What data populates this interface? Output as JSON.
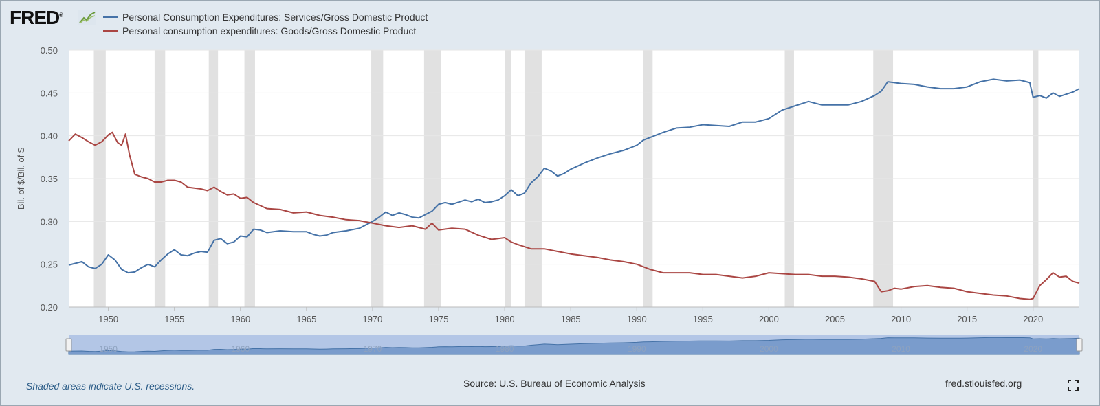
{
  "header": {
    "logo_text": "FRED",
    "logo_mark": "®"
  },
  "legend": [
    {
      "label": "Personal Consumption Expenditures: Services/Gross Domestic Product",
      "color": "#4572a7"
    },
    {
      "label": "Personal consumption expenditures: Goods/Gross Domestic Product",
      "color": "#aa4643"
    }
  ],
  "footer": {
    "note": "Shaded areas indicate U.S. recessions.",
    "source": "Source: U.S. Bureau of Economic Analysis",
    "site": "fred.stlouisfed.org"
  },
  "chart_data": {
    "type": "line",
    "ylabel": "Bil. of $/Bil. of $",
    "xlabel": "",
    "ylim": [
      0.2,
      0.5
    ],
    "yticks": [
      "0.20",
      "0.25",
      "0.30",
      "0.35",
      "0.40",
      "0.45",
      "0.50"
    ],
    "xlim": [
      1947,
      2023.5
    ],
    "xticks": [
      "1950",
      "1955",
      "1960",
      "1965",
      "1970",
      "1975",
      "1980",
      "1985",
      "1990",
      "1995",
      "2000",
      "2005",
      "2010",
      "2015",
      "2020"
    ],
    "navigator_ticks": [
      "1950",
      "1960",
      "1970",
      "1980",
      "1990",
      "2000",
      "2010",
      "2020"
    ],
    "recessions": [
      [
        1948.9,
        1949.8
      ],
      [
        1953.5,
        1954.3
      ],
      [
        1957.6,
        1958.3
      ],
      [
        1960.3,
        1961.1
      ],
      [
        1969.9,
        1970.8
      ],
      [
        1973.9,
        1975.2
      ],
      [
        1980.0,
        1980.5
      ],
      [
        1981.5,
        1982.8
      ],
      [
        1990.5,
        1991.2
      ],
      [
        2001.2,
        2001.9
      ],
      [
        2007.9,
        2009.4
      ],
      [
        2020.0,
        2020.4
      ]
    ],
    "series": [
      {
        "name": "Personal Consumption Expenditures: Services/Gross Domestic Product",
        "color": "#4572a7",
        "x": [
          1947,
          1948,
          1948.5,
          1949,
          1949.5,
          1950,
          1950.5,
          1951,
          1951.5,
          1952,
          1952.5,
          1953,
          1953.5,
          1954,
          1954.5,
          1955,
          1955.5,
          1956,
          1956.5,
          1957,
          1957.5,
          1958,
          1958.5,
          1959,
          1959.5,
          1960,
          1960.5,
          1961,
          1961.5,
          1962,
          1963,
          1964,
          1965,
          1965.5,
          1966,
          1966.5,
          1967,
          1968,
          1969,
          1970,
          1970.5,
          1971,
          1971.5,
          1972,
          1972.5,
          1973,
          1973.5,
          1974,
          1974.5,
          1975,
          1975.5,
          1976,
          1977,
          1977.5,
          1978,
          1978.5,
          1979,
          1979.5,
          1980,
          1980.5,
          1981,
          1981.5,
          1982,
          1982.5,
          1983,
          1983.5,
          1984,
          1984.5,
          1985,
          1986,
          1987,
          1988,
          1989,
          1990,
          1990.5,
          1991,
          1992,
          1993,
          1994,
          1995,
          1996,
          1997,
          1998,
          1999,
          2000,
          2001,
          2002,
          2003,
          2004,
          2005,
          2006,
          2007,
          2008,
          2008.5,
          2009,
          2009.5,
          2010,
          2011,
          2012,
          2013,
          2014,
          2015,
          2016,
          2017,
          2018,
          2019,
          2019.75,
          2020,
          2020.5,
          2021,
          2021.5,
          2022,
          2023,
          2023.5
        ],
        "values": [
          0.249,
          0.253,
          0.247,
          0.245,
          0.25,
          0.261,
          0.255,
          0.244,
          0.24,
          0.241,
          0.246,
          0.25,
          0.247,
          0.255,
          0.262,
          0.267,
          0.261,
          0.26,
          0.263,
          0.265,
          0.264,
          0.278,
          0.28,
          0.274,
          0.276,
          0.283,
          0.282,
          0.291,
          0.29,
          0.287,
          0.289,
          0.288,
          0.288,
          0.285,
          0.283,
          0.284,
          0.287,
          0.289,
          0.292,
          0.3,
          0.305,
          0.311,
          0.307,
          0.31,
          0.308,
          0.305,
          0.304,
          0.308,
          0.312,
          0.32,
          0.322,
          0.32,
          0.325,
          0.323,
          0.326,
          0.322,
          0.323,
          0.325,
          0.33,
          0.337,
          0.33,
          0.333,
          0.345,
          0.352,
          0.362,
          0.359,
          0.353,
          0.356,
          0.361,
          0.368,
          0.374,
          0.379,
          0.383,
          0.389,
          0.395,
          0.398,
          0.404,
          0.409,
          0.41,
          0.413,
          0.412,
          0.411,
          0.416,
          0.416,
          0.42,
          0.43,
          0.435,
          0.44,
          0.436,
          0.436,
          0.436,
          0.44,
          0.447,
          0.452,
          0.463,
          0.462,
          0.461,
          0.46,
          0.457,
          0.455,
          0.455,
          0.457,
          0.463,
          0.466,
          0.464,
          0.465,
          0.462,
          0.445,
          0.447,
          0.444,
          0.45,
          0.446,
          0.451,
          0.455
        ]
      },
      {
        "name": "Personal consumption expenditures: Goods/Gross Domestic Product",
        "color": "#aa4643",
        "x": [
          1947,
          1947.5,
          1948,
          1948.5,
          1949,
          1949.5,
          1950,
          1950.3,
          1950.7,
          1951,
          1951.3,
          1951.6,
          1952,
          1952.5,
          1953,
          1953.5,
          1954,
          1954.5,
          1955,
          1955.5,
          1956,
          1957,
          1957.5,
          1958,
          1958.5,
          1959,
          1959.5,
          1960,
          1960.5,
          1961,
          1962,
          1963,
          1964,
          1965,
          1966,
          1967,
          1968,
          1969,
          1970,
          1971,
          1972,
          1973,
          1974,
          1974.5,
          1975,
          1976,
          1977,
          1978,
          1979,
          1980,
          1980.5,
          1981,
          1982,
          1983,
          1984,
          1985,
          1986,
          1987,
          1988,
          1989,
          1990,
          1991,
          1992,
          1993,
          1994,
          1995,
          1996,
          1997,
          1998,
          1999,
          2000,
          2001,
          2002,
          2003,
          2004,
          2005,
          2006,
          2007,
          2008,
          2008.5,
          2009,
          2009.5,
          2010,
          2011,
          2012,
          2013,
          2014,
          2015,
          2016,
          2017,
          2018,
          2019,
          2019.75,
          2020,
          2020.5,
          2021,
          2021.5,
          2022,
          2022.5,
          2023,
          2023.5
        ],
        "values": [
          0.394,
          0.402,
          0.398,
          0.393,
          0.389,
          0.393,
          0.401,
          0.404,
          0.392,
          0.389,
          0.402,
          0.378,
          0.355,
          0.352,
          0.35,
          0.346,
          0.346,
          0.348,
          0.348,
          0.346,
          0.34,
          0.338,
          0.336,
          0.34,
          0.335,
          0.331,
          0.332,
          0.327,
          0.328,
          0.322,
          0.315,
          0.314,
          0.31,
          0.311,
          0.307,
          0.305,
          0.302,
          0.301,
          0.298,
          0.295,
          0.293,
          0.295,
          0.291,
          0.298,
          0.29,
          0.292,
          0.291,
          0.284,
          0.279,
          0.281,
          0.276,
          0.273,
          0.268,
          0.268,
          0.265,
          0.262,
          0.26,
          0.258,
          0.255,
          0.253,
          0.25,
          0.244,
          0.24,
          0.24,
          0.24,
          0.238,
          0.238,
          0.236,
          0.234,
          0.236,
          0.24,
          0.239,
          0.238,
          0.238,
          0.236,
          0.236,
          0.235,
          0.233,
          0.23,
          0.218,
          0.219,
          0.222,
          0.221,
          0.224,
          0.225,
          0.223,
          0.222,
          0.218,
          0.216,
          0.214,
          0.213,
          0.21,
          0.209,
          0.21,
          0.225,
          0.232,
          0.24,
          0.235,
          0.236,
          0.23,
          0.228
        ]
      }
    ]
  }
}
